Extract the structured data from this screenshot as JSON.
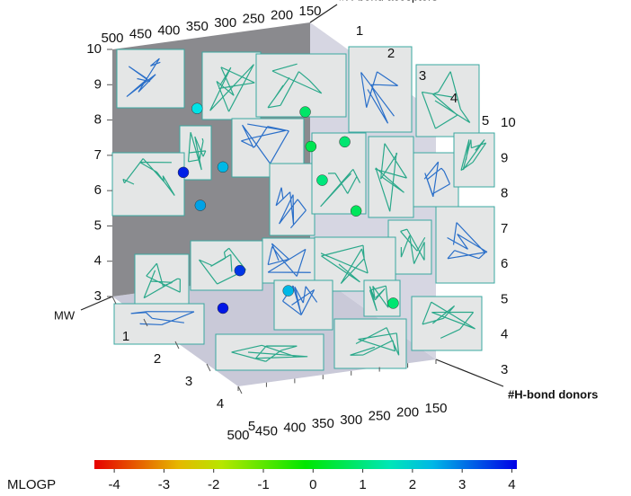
{
  "chart_data": {
    "type": "scatter3d",
    "x_label": "MW",
    "y_label": "#H-bond donors",
    "z_label": "#H-bond acceptors",
    "color_label": "MLOGP",
    "xlim": [
      500,
      150
    ],
    "xticks": [
      500,
      450,
      400,
      350,
      300,
      250,
      200,
      150
    ],
    "ylim": [
      1,
      5
    ],
    "yticks": [
      1,
      2,
      3,
      4,
      5
    ],
    "zlim": [
      3,
      10
    ],
    "zticks": [
      3,
      4,
      5,
      6,
      7,
      8,
      9,
      10
    ],
    "clim": [
      -4.4,
      4.1
    ],
    "cticks": [
      -4,
      -3,
      -2,
      -1,
      0,
      1,
      2,
      3,
      4
    ],
    "points": {
      "mw": [
        430,
        400,
        360,
        350,
        270,
        260,
        200,
        240,
        180,
        300,
        330,
        360,
        170
      ],
      "donors": [
        2,
        2,
        2,
        1,
        3,
        3,
        3,
        3,
        3,
        3,
        2,
        2,
        4
      ],
      "acceptors": [
        7,
        6,
        7,
        8,
        9,
        8,
        8,
        7,
        6,
        4,
        4,
        3,
        4
      ],
      "mlogp": [
        3.8,
        2.6,
        2.4,
        2.0,
        0.8,
        0.6,
        0.9,
        1.0,
        0.7,
        2.4,
        3.6,
        3.9,
        0.9
      ]
    }
  }
}
